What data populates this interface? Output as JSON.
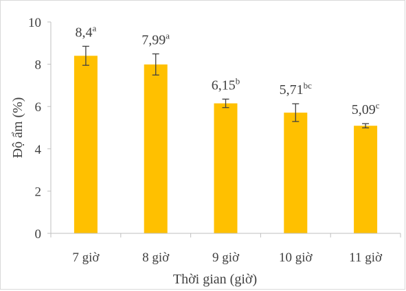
{
  "chart_data": {
    "type": "bar",
    "categories": [
      "7 giờ",
      "8 giờ",
      "9 giờ",
      "10 giờ",
      "11 giờ"
    ],
    "values": [
      8.4,
      7.99,
      6.15,
      5.71,
      5.09
    ],
    "error": [
      0.45,
      0.5,
      0.2,
      0.42,
      0.1
    ],
    "data_labels": [
      {
        "value": "8,4",
        "sup": "a"
      },
      {
        "value": "7,99",
        "sup": "a"
      },
      {
        "value": "6,15",
        "sup": "b"
      },
      {
        "value": "5,71",
        "sup": "bc"
      },
      {
        "value": "5,09",
        "sup": "c"
      }
    ],
    "xlabel": "Thời gian (giờ)",
    "ylabel": "Độ ẩm (%)",
    "ylim": [
      0,
      10
    ],
    "yticks": [
      "0",
      "2",
      "4",
      "6",
      "8",
      "10"
    ],
    "bar_color": "#FFC000",
    "error_color": "#404040",
    "grid": false,
    "legend": "none"
  }
}
